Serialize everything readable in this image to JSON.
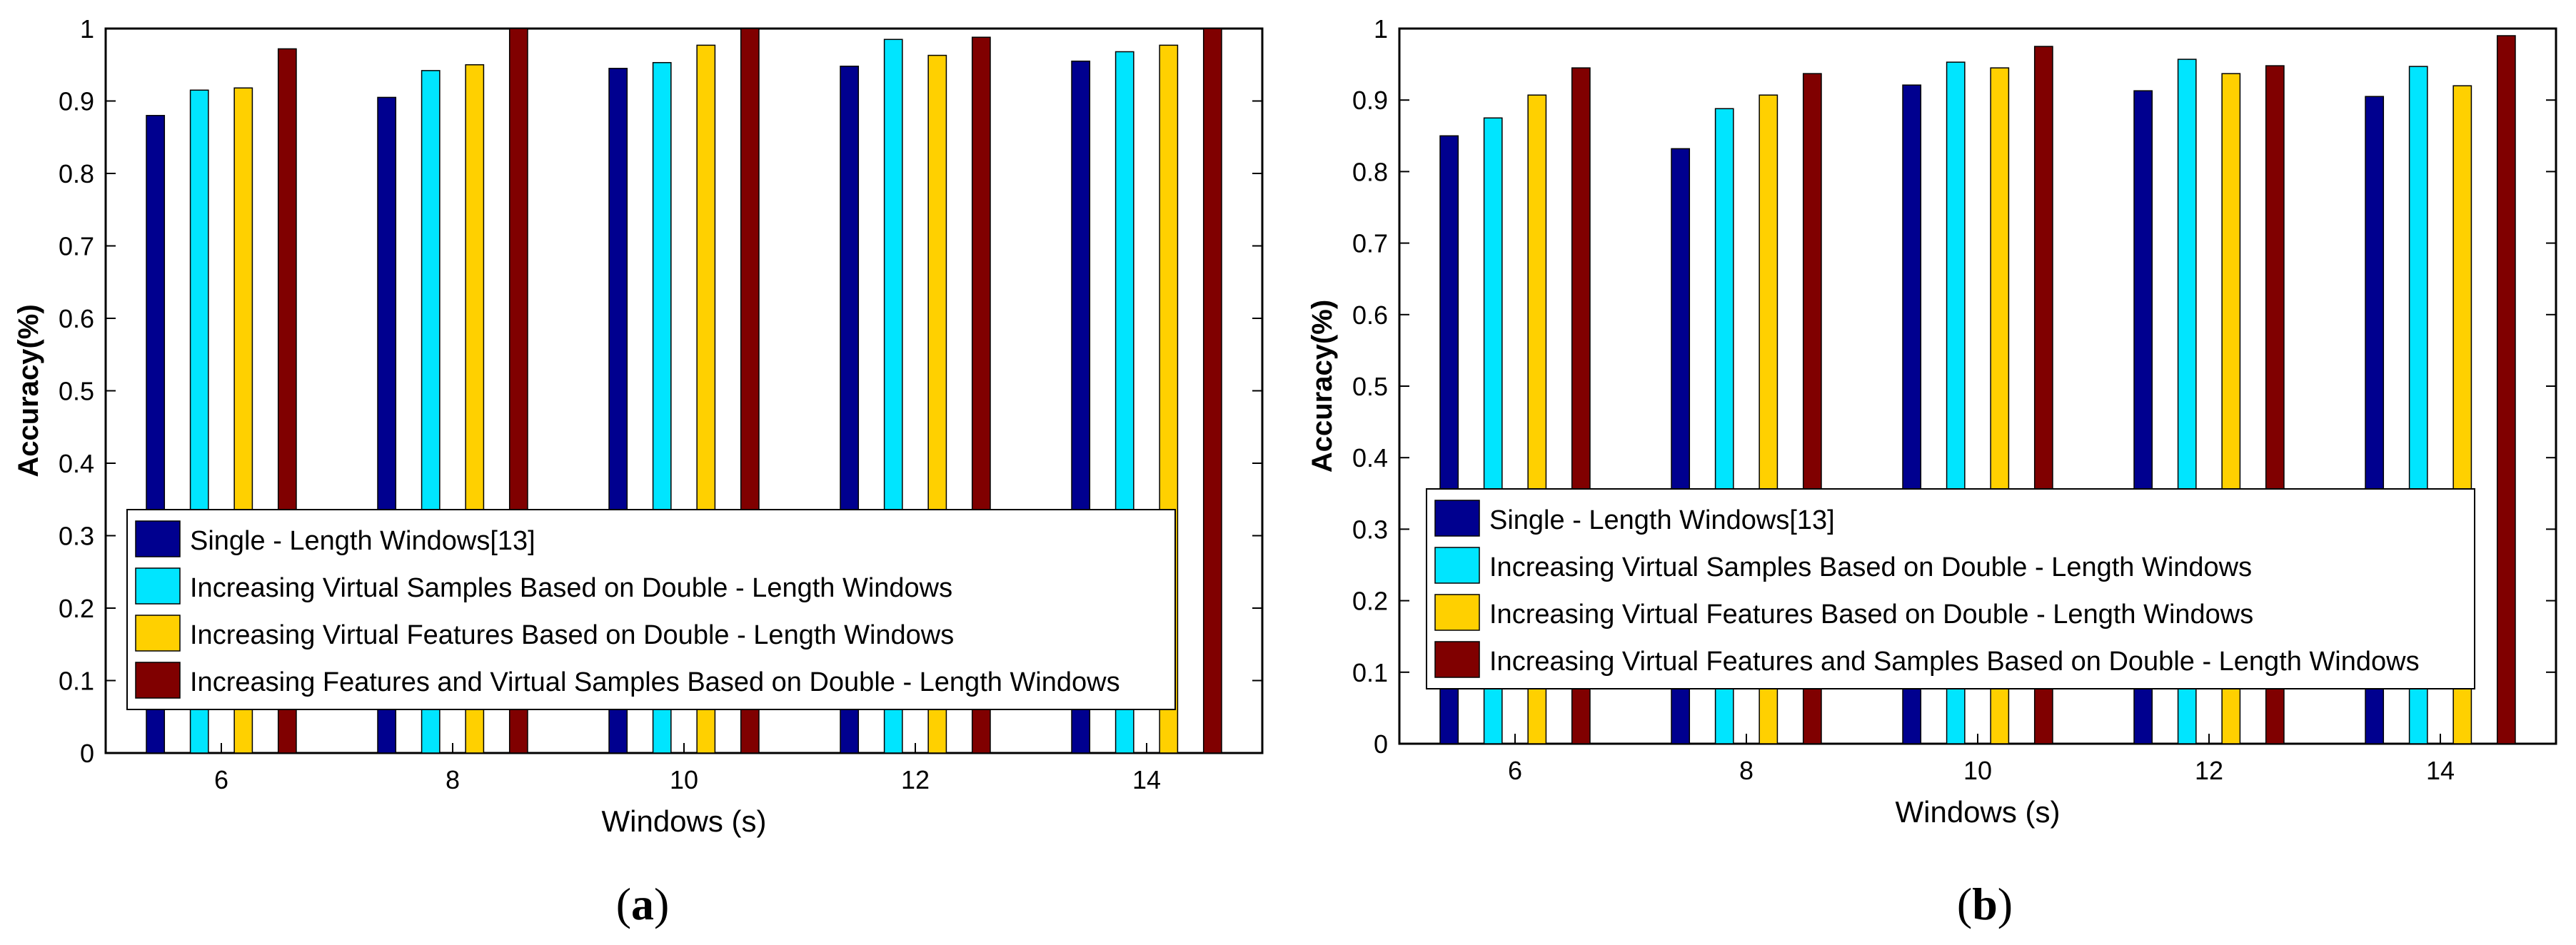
{
  "chart_data": [
    {
      "type": "bar",
      "panel": "a",
      "caption_letter": "a",
      "categories": [
        "6",
        "8",
        "10",
        "12",
        "14"
      ],
      "xlabel": "Windows (s)",
      "ylabel": "Accuracy(%)",
      "ylim": [
        0,
        1
      ],
      "yticks": [
        "0",
        "0.1",
        "0.2",
        "0.3",
        "0.4",
        "0.5",
        "0.6",
        "0.7",
        "0.8",
        "0.9",
        "1"
      ],
      "legend_position": "bottom-left",
      "series": [
        {
          "name": "Single - Length Windows[13]",
          "color": "#00008f",
          "values": [
            0.88,
            0.905,
            0.945,
            0.948,
            0.955
          ]
        },
        {
          "name": "Increasing Virtual Samples Based on Double - Length Windows",
          "color": "#00e5ff",
          "values": [
            0.915,
            0.942,
            0.953,
            0.985,
            0.968
          ]
        },
        {
          "name": "Increasing Virtual Features Based on Double - Length Windows",
          "color": "#ffd000",
          "values": [
            0.918,
            0.95,
            0.977,
            0.963,
            0.977
          ]
        },
        {
          "name": "Increasing Features and Virtual Samples Based on Double - Length Windows",
          "color": "#800000",
          "values": [
            0.972,
            1.0,
            1.0,
            0.988,
            1.0
          ]
        }
      ]
    },
    {
      "type": "bar",
      "panel": "b",
      "caption_letter": "b",
      "categories": [
        "6",
        "8",
        "10",
        "12",
        "14"
      ],
      "xlabel": "Windows (s)",
      "ylabel": "Accuracy(%)",
      "ylim": [
        0,
        1
      ],
      "yticks": [
        "0",
        "0.1",
        "0.2",
        "0.3",
        "0.4",
        "0.5",
        "0.6",
        "0.7",
        "0.8",
        "0.9",
        "1"
      ],
      "legend_position": "bottom-left",
      "series": [
        {
          "name": "Single - Length Windows[13]",
          "color": "#00008f",
          "values": [
            0.85,
            0.832,
            0.921,
            0.913,
            0.905
          ]
        },
        {
          "name": "Increasing Virtual Samples Based on Double - Length Windows",
          "color": "#00e5ff",
          "values": [
            0.875,
            0.888,
            0.953,
            0.957,
            0.947
          ]
        },
        {
          "name": "Increasing Virtual Features Based on Double - Length Windows",
          "color": "#ffd000",
          "values": [
            0.907,
            0.907,
            0.945,
            0.937,
            0.92
          ]
        },
        {
          "name": "Increasing Virtual Features and Samples Based on Double - Length Windows",
          "color": "#800000",
          "values": [
            0.945,
            0.937,
            0.975,
            0.948,
            0.99
          ]
        }
      ]
    }
  ]
}
